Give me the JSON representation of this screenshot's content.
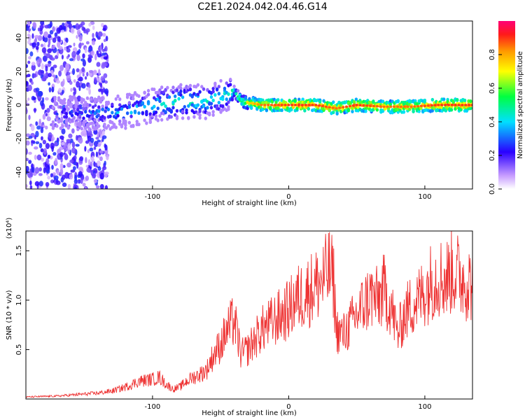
{
  "title": "C2E1.2024.042.04.46.G14",
  "colors": {
    "snr_line": "#ee3333",
    "axis": "#000000"
  },
  "chart_data": [
    {
      "type": "heatmap",
      "xlabel": "Height of straight line (km)",
      "ylabel": "Frequency (Hz)",
      "xlim": [
        -193,
        135
      ],
      "ylim": [
        -50,
        50
      ],
      "xticks": [
        -100,
        0,
        100
      ],
      "yticks": [
        -40,
        -20,
        0,
        20,
        40
      ],
      "colorbar": {
        "label": "Normalized spectral amplitude",
        "range": [
          0,
          1
        ],
        "ticks": [
          "0.0",
          "0.2",
          "0.4",
          "0.6",
          "0.8"
        ],
        "tick_values": [
          0.0,
          0.2,
          0.4,
          0.6,
          0.8
        ]
      },
      "ridge": {
        "x": [
          -170,
          -140,
          -120,
          -100,
          -80,
          -60,
          -40,
          -34,
          -20,
          0,
          20,
          35,
          50,
          70,
          90,
          110,
          135
        ],
        "frequency": [
          -5,
          -5,
          -4,
          0,
          2,
          2,
          8,
          2,
          0,
          0,
          0,
          -2,
          0,
          -1,
          -1,
          0,
          0
        ],
        "amplitude": [
          0.3,
          0.4,
          0.45,
          0.5,
          0.55,
          0.5,
          0.55,
          0.7,
          0.85,
          0.9,
          0.9,
          0.85,
          0.9,
          0.85,
          0.85,
          0.9,
          0.9
        ]
      }
    },
    {
      "type": "line",
      "xlabel": "Height of straight line (km)",
      "ylabel": "SNR (10 * v/v)",
      "multiplier": "(x10⁴)",
      "xlim": [
        -193,
        135
      ],
      "ylim": [
        0,
        1.7
      ],
      "xticks": [
        -100,
        0,
        100
      ],
      "yticks": [
        "0.5",
        "1.0",
        "1.5"
      ],
      "ytick_values": [
        0.5,
        1.0,
        1.5
      ],
      "x": [
        -193,
        -170,
        -150,
        -140,
        -130,
        -120,
        -110,
        -100,
        -95,
        -90,
        -85,
        -80,
        -75,
        -70,
        -65,
        -60,
        -55,
        -50,
        -45,
        -40,
        -35,
        -30,
        -25,
        -20,
        -15,
        -10,
        -5,
        0,
        5,
        10,
        15,
        20,
        25,
        30,
        33,
        35,
        40,
        45,
        50,
        55,
        60,
        65,
        70,
        75,
        80,
        85,
        90,
        95,
        100,
        105,
        110,
        115,
        120,
        125,
        130,
        135
      ],
      "values": [
        0.02,
        0.03,
        0.05,
        0.06,
        0.08,
        0.12,
        0.18,
        0.2,
        0.22,
        0.15,
        0.1,
        0.12,
        0.18,
        0.22,
        0.25,
        0.3,
        0.45,
        0.55,
        0.7,
        0.8,
        0.45,
        0.5,
        0.6,
        0.7,
        0.75,
        0.8,
        0.85,
        0.9,
        1.0,
        1.05,
        1.1,
        1.15,
        1.2,
        1.3,
        1.2,
        0.7,
        0.65,
        0.75,
        0.85,
        0.95,
        1.05,
        1.0,
        1.1,
        0.95,
        0.65,
        0.85,
        0.95,
        1.0,
        1.1,
        1.2,
        1.25,
        1.2,
        1.3,
        1.25,
        1.2,
        1.15
      ]
    }
  ]
}
